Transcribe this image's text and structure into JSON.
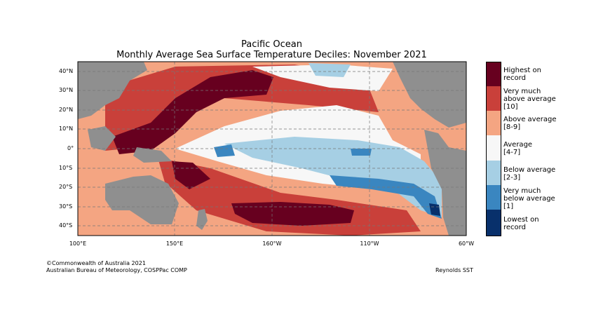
{
  "title": "Pacific Ocean",
  "subtitle": "Monthly Average Sea Surface Temperature Deciles: November 2021",
  "lat_labels": [
    "40°N",
    "30°N",
    "20°N",
    "10°N",
    "0°",
    "10°S",
    "20°S",
    "30°S",
    "40°S"
  ],
  "lon_labels": [
    "100°E",
    "150°E",
    "160°W",
    "110°W",
    "60°W"
  ],
  "legend": [
    {
      "label_line1": "Highest on",
      "label_line2": "record",
      "label_line3": "",
      "color": "#67001f"
    },
    {
      "label_line1": "Very much",
      "label_line2": "above average",
      "label_line3": "[10]",
      "color": "#c9403a"
    },
    {
      "label_line1": "Above average",
      "label_line2": "[8-9]",
      "label_line3": "",
      "color": "#f4a582"
    },
    {
      "label_line1": "Average",
      "label_line2": "[4-7]",
      "label_line3": "",
      "color": "#f7f7f7"
    },
    {
      "label_line1": "Below average",
      "label_line2": "[2-3]",
      "label_line3": "",
      "color": "#a6cfe4"
    },
    {
      "label_line1": "Very much",
      "label_line2": "below average",
      "label_line3": "[1]",
      "color": "#3a86c0"
    },
    {
      "label_line1": "Lowest on",
      "label_line2": "record",
      "label_line3": "",
      "color": "#08306b"
    }
  ],
  "land_color": "#8f8f8f",
  "copyright": "©Commonwealth of Australia 2021",
  "agency": "Australian Bureau of Meteorology, COSPPac COMP",
  "source": "Reynolds SST"
}
